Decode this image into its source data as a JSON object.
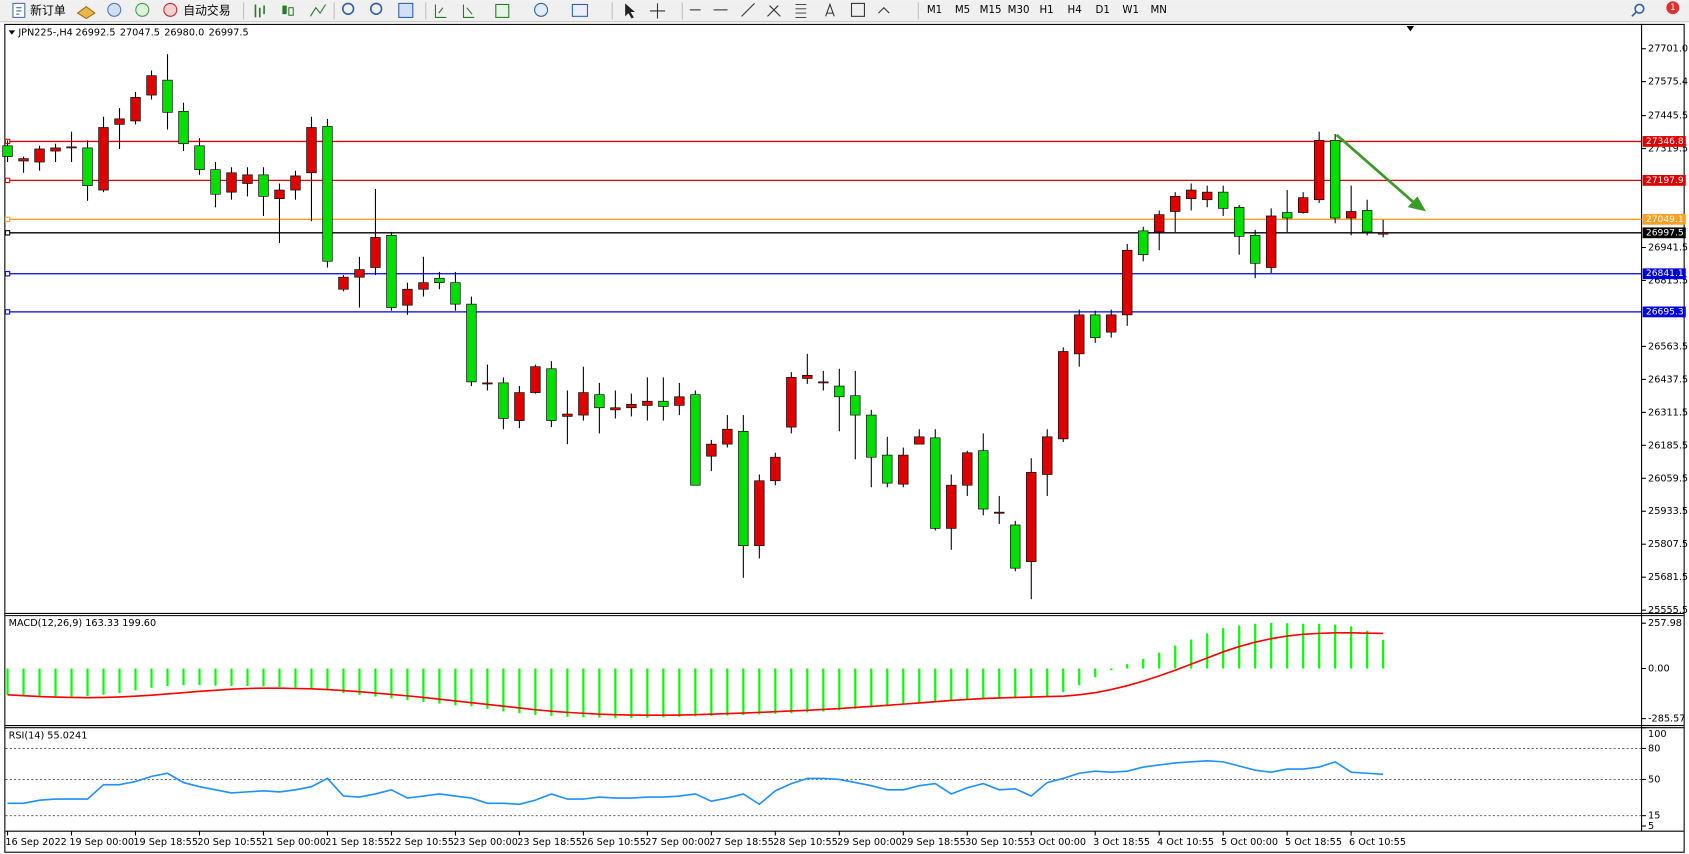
{
  "toolbar": {
    "new_order": "新订单",
    "auto_trading": "自动交易",
    "timeframes": [
      "M1",
      "M5",
      "M15",
      "M30",
      "H1",
      "H4",
      "D1",
      "W1",
      "MN"
    ],
    "notifications": "1"
  },
  "chart_data": [
    {
      "type": "candlestick",
      "title": "JPN225-,H4",
      "title_values": [
        "26992.5",
        "27047.5",
        "26980.0",
        "26997.5"
      ],
      "up_color": "#e00000",
      "down_color": "#00e000",
      "categories": [
        "16 Sep 2022",
        null,
        null,
        null,
        "19 Sep 00:00",
        null,
        null,
        null,
        "19 Sep 18:55",
        null,
        null,
        null,
        "20 Sep 10:55",
        null,
        null,
        null,
        "21 Sep 00:00",
        null,
        null,
        null,
        "21 Sep 18:55",
        null,
        null,
        null,
        "22 Sep 10:55",
        null,
        null,
        null,
        "23 Sep 00:00",
        null,
        null,
        null,
        "23 Sep 18:55",
        null,
        null,
        null,
        "26 Sep 10:55",
        null,
        null,
        null,
        "27 Sep 00:00",
        null,
        null,
        null,
        "27 Sep 18:55",
        null,
        null,
        null,
        "28 Sep 10:55",
        null,
        null,
        null,
        "29 Sep 00:00",
        null,
        null,
        null,
        "29 Sep 18:55",
        null,
        null,
        null,
        "30 Sep 10:55",
        null,
        null,
        null,
        "3 Oct 00:00",
        null,
        null,
        null,
        "3 Oct 18:55",
        null,
        null,
        null,
        "4 Oct 10:55",
        null,
        null,
        null,
        "5 Oct 00:00",
        null,
        null,
        null,
        "5 Oct 18:55",
        null,
        null,
        null,
        "6 Oct 10:55",
        null,
        null
      ],
      "open": [
        27330,
        27272,
        27268,
        27310,
        27322,
        27322,
        27161,
        27412,
        27425,
        27524,
        27581,
        27462,
        27330,
        27239,
        27153,
        27186,
        27219,
        27128,
        27161,
        27227,
        27404,
        26782,
        26828,
        26865,
        26988,
        26721,
        26782,
        26824,
        26807,
        26725,
        26420,
        26424,
        26280,
        26387,
        26478,
        26296,
        26301,
        26379,
        26321,
        26329,
        26338,
        26354,
        26338,
        26379,
        26144,
        26190,
        26239,
        25802,
        26050,
        26255,
        26441,
        26424,
        26412,
        26375,
        26301,
        26148,
        26037,
        26190,
        26214,
        25868,
        26033,
        26165,
        25926,
        25881,
        25741,
        26074,
        26210,
        26535,
        26684,
        26618,
        26684,
        27005,
        27001,
        27079,
        27128,
        27124,
        27153,
        27095,
        26988,
        26865,
        27075,
        27075,
        27124,
        27351,
        27054,
        27083,
        26992.5
      ],
      "high": [
        27351,
        27289,
        27330,
        27338,
        27384,
        27351,
        27441,
        27474,
        27536,
        27618,
        27680,
        27495,
        27359,
        27268,
        27248,
        27248,
        27248,
        27186,
        27235,
        27441,
        27433,
        26836,
        26906,
        27165,
        27001,
        26807,
        26906,
        26848,
        26848,
        26754,
        26494,
        26445,
        26412,
        26494,
        26507,
        26395,
        26486,
        26424,
        26395,
        26383,
        26445,
        26445,
        26424,
        26395,
        26206,
        26301,
        26301,
        26074,
        26157,
        26465,
        26535,
        26470,
        26478,
        26470,
        26321,
        26218,
        26177,
        26247,
        26247,
        26074,
        26165,
        26231,
        25992,
        25897,
        26136,
        26247,
        26560,
        26704,
        26700,
        26704,
        26955,
        27021,
        27083,
        27153,
        27186,
        27178,
        27178,
        27104,
        27009,
        27091,
        27161,
        27153,
        27384,
        27375,
        27178,
        27124,
        27047.5
      ],
      "low": [
        27268,
        27227,
        27235,
        27268,
        27268,
        27120,
        27153,
        27318,
        27412,
        27507,
        27392,
        27310,
        27219,
        27095,
        27124,
        27137,
        27062,
        26959,
        27124,
        27042,
        26865,
        26774,
        26712,
        26836,
        26700,
        26684,
        26754,
        26782,
        26700,
        26412,
        26395,
        26247,
        26251,
        26383,
        26255,
        26190,
        26280,
        26231,
        26288,
        26296,
        26280,
        26280,
        26301,
        26033,
        26087,
        26177,
        25679,
        25753,
        26033,
        26231,
        26420,
        26395,
        26239,
        26132,
        26025,
        26025,
        26025,
        26190,
        25860,
        25786,
        25992,
        25918,
        25885,
        25704,
        25597,
        25992,
        26198,
        26486,
        26577,
        26597,
        26642,
        26889,
        26931,
        27001,
        27083,
        27095,
        27062,
        26914,
        26824,
        26844,
        27001,
        27071,
        27112,
        27034,
        26988,
        26988,
        26980
      ],
      "close": [
        27289,
        27281,
        27318,
        27322,
        27326,
        27178,
        27400,
        27433,
        27515,
        27598,
        27458,
        27338,
        27239,
        27145,
        27227,
        27219,
        27137,
        27161,
        27215,
        27400,
        26889,
        26828,
        26857,
        26980,
        26712,
        26782,
        26807,
        26807,
        26725,
        26428,
        26424,
        26288,
        26387,
        26486,
        26280,
        26305,
        26387,
        26329,
        26329,
        26342,
        26354,
        26334,
        26371,
        26033,
        26190,
        26247,
        25802,
        26050,
        26140,
        26445,
        26453,
        26428,
        26371,
        26301,
        26140,
        26041,
        26148,
        26218,
        25868,
        26033,
        26157,
        25942,
        25930,
        25716,
        26082,
        26218,
        26544,
        26684,
        26597,
        26684,
        26931,
        26914,
        27067,
        27137,
        27161,
        27153,
        27091,
        26984,
        26881,
        27062,
        27054,
        27132,
        27351,
        27054,
        27079,
        27001,
        26997.5
      ],
      "levels": [
        {
          "value": 27346.8,
          "color": "#e00000"
        },
        {
          "value": 27197.9,
          "color": "#e00000"
        },
        {
          "value": 27049.1,
          "color": "#ffa020"
        },
        {
          "value": 26997.5,
          "color": "#000000"
        },
        {
          "value": 26841.1,
          "color": "#0000e0"
        },
        {
          "value": 26695.3,
          "color": "#0000e0"
        }
      ],
      "ylim": [
        25547,
        27796
      ],
      "yticks": [
        {
          "value": 27701,
          "label": "27701.0"
        },
        27575.4,
        27445.5,
        27319.5,
        26941.5,
        26815.5,
        26563.5,
        26437.5,
        26311.5,
        26185.5,
        26059.5,
        25933.5,
        25807.5,
        25681.5,
        25555.5
      ]
    },
    {
      "type": "macd",
      "title": "MACD(12,26,9) 163.33 199.60",
      "ylim": [
        -319,
        295
      ],
      "yticks": [
        257.98,
        {
          "value": 0,
          "label": "0.00"
        },
        -285.57
      ],
      "series": [
        {
          "kind": "bars",
          "color": "#00ff00",
          "values": [
            -150,
            -152,
            -155,
            -158,
            -160,
            -158,
            -150,
            -140,
            -125,
            -110,
            -100,
            -95,
            -95,
            -98,
            -100,
            -100,
            -102,
            -105,
            -110,
            -115,
            -125,
            -140,
            -150,
            -160,
            -170,
            -180,
            -190,
            -200,
            -210,
            -215,
            -230,
            -245,
            -255,
            -265,
            -270,
            -275,
            -278,
            -280,
            -282,
            -282,
            -280,
            -278,
            -275,
            -272,
            -270,
            -268,
            -265,
            -262,
            -258,
            -255,
            -250,
            -245,
            -238,
            -230,
            -222,
            -215,
            -205,
            -195,
            -188,
            -182,
            -178,
            -175,
            -172,
            -170,
            -168,
            -160,
            -135,
            -95,
            -50,
            -10,
            25,
            55,
            90,
            130,
            165,
            200,
            230,
            245,
            255,
            260,
            258,
            255,
            255,
            250,
            240,
            215,
            163.33
          ]
        },
        {
          "kind": "line",
          "color": "#ff0000",
          "values": [
            -150,
            -155,
            -160,
            -163,
            -165,
            -166,
            -165,
            -162,
            -158,
            -152,
            -145,
            -138,
            -130,
            -124,
            -118,
            -114,
            -112,
            -112,
            -114,
            -116,
            -120,
            -126,
            -132,
            -140,
            -148,
            -156,
            -165,
            -175,
            -185,
            -195,
            -205,
            -215,
            -225,
            -235,
            -243,
            -250,
            -255,
            -260,
            -263,
            -265,
            -266,
            -266,
            -265,
            -263,
            -260,
            -257,
            -254,
            -250,
            -246,
            -242,
            -238,
            -233,
            -228,
            -222,
            -216,
            -210,
            -203,
            -196,
            -189,
            -182,
            -176,
            -171,
            -168,
            -165,
            -163,
            -160,
            -158,
            -150,
            -138,
            -120,
            -98,
            -72,
            -42,
            -10,
            25,
            60,
            95,
            125,
            150,
            170,
            185,
            195,
            200,
            203,
            203,
            201,
            199.6
          ]
        }
      ]
    },
    {
      "type": "rsi",
      "title": "RSI(14) 55.0241",
      "ylim": [
        0,
        100
      ],
      "yticks": [
        100,
        80,
        50,
        15,
        5
      ],
      "levels": [
        80,
        50,
        15
      ],
      "series": [
        {
          "kind": "line",
          "color": "#1e90ff",
          "values": [
            27,
            27,
            30,
            31,
            31,
            31,
            45,
            45,
            48,
            53,
            56,
            47,
            43,
            40,
            37,
            38,
            39,
            38,
            40,
            43,
            51,
            34,
            33,
            36,
            40,
            32,
            34,
            36,
            34,
            32,
            27,
            27,
            26,
            30,
            36,
            31,
            31,
            33,
            32,
            32,
            33,
            33,
            34,
            36,
            29,
            32,
            36,
            26,
            39,
            46,
            51,
            51,
            50,
            47,
            44,
            40,
            40,
            44,
            46,
            36,
            42,
            46,
            40,
            41,
            34,
            47,
            51,
            56,
            58,
            57,
            58,
            62,
            64,
            66,
            67,
            68,
            67,
            63,
            59,
            57,
            60,
            60,
            62,
            67,
            57,
            56,
            55.0241
          ]
        }
      ]
    }
  ]
}
